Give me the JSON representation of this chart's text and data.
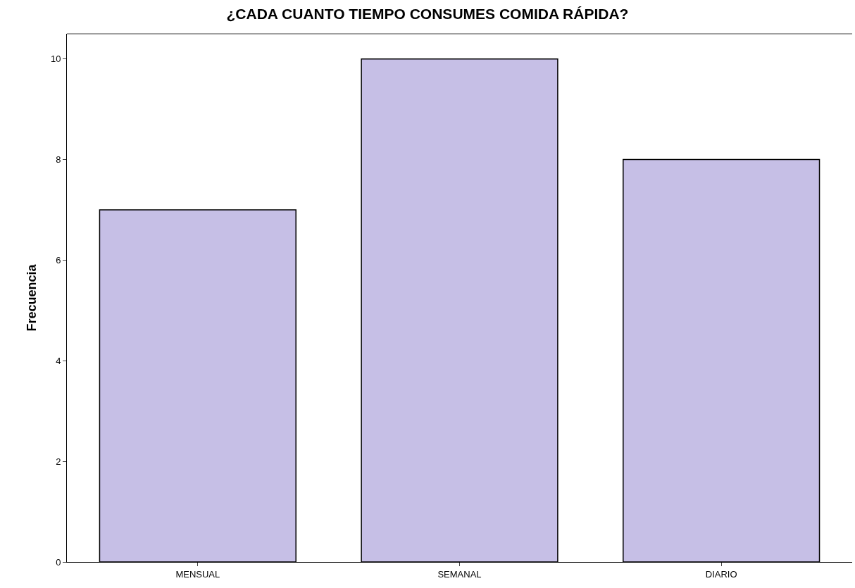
{
  "chart_data": {
    "type": "bar",
    "title": "¿CADA CUANTO TIEMPO CONSUMES COMIDA RÁPIDA?",
    "ylabel": "Frecuencia",
    "categories": [
      "MENSUAL",
      "SEMANAL",
      "DIARIO"
    ],
    "values": [
      7,
      10,
      8
    ],
    "color": "#c6bfe6",
    "ylim": [
      0,
      10.5
    ],
    "yticks": [
      0,
      2,
      4,
      6,
      8,
      10
    ]
  }
}
